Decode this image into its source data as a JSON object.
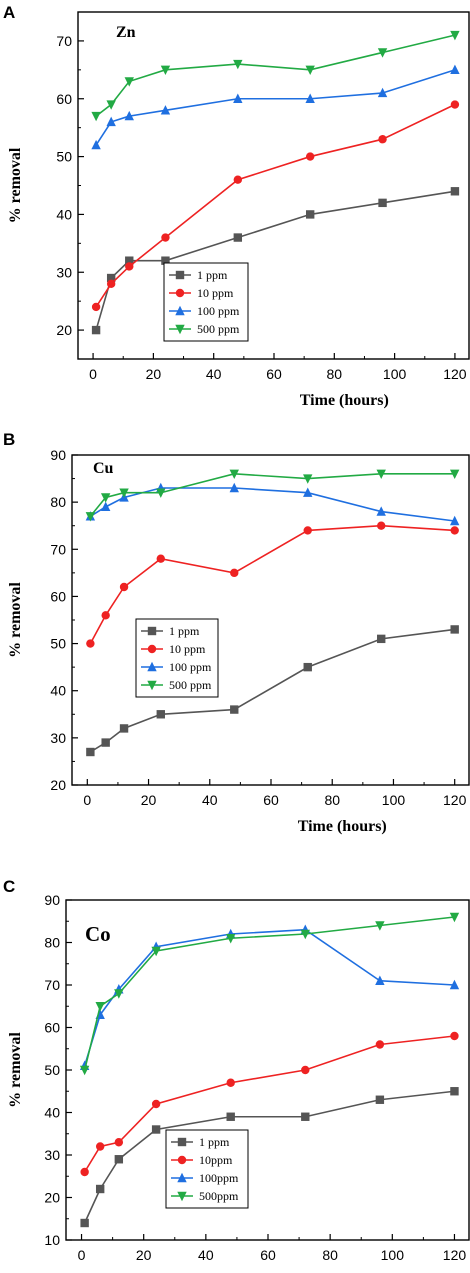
{
  "chart_data": [
    {
      "type": "line",
      "panel_label": "A",
      "title": "Zn",
      "xlabel": "Time (hours)",
      "ylabel": "% removal",
      "xlim": [
        -5,
        125
      ],
      "ylim": [
        15,
        75
      ],
      "xticks": [
        0,
        20,
        40,
        60,
        80,
        100,
        120
      ],
      "yticks": [
        20,
        30,
        40,
        50,
        60,
        70
      ],
      "legend_position": "lower-center",
      "x": [
        1,
        6,
        12,
        24,
        48,
        72,
        96,
        120
      ],
      "series": [
        {
          "name": "1 ppm",
          "color": "#555555",
          "marker": "square",
          "values": [
            20,
            29,
            32,
            32,
            36,
            40,
            42,
            44
          ]
        },
        {
          "name": "10 ppm",
          "color": "#ee2222",
          "marker": "circle",
          "values": [
            24,
            28,
            31,
            36,
            46,
            50,
            53,
            59
          ]
        },
        {
          "name": "100 ppm",
          "color": "#1f6fe0",
          "marker": "triangle-up",
          "values": [
            52,
            56,
            57,
            58,
            60,
            60,
            61,
            65
          ]
        },
        {
          "name": "500 ppm",
          "color": "#22aa44",
          "marker": "triangle-down",
          "values": [
            57,
            59,
            63,
            65,
            66,
            65,
            68,
            71
          ]
        }
      ]
    },
    {
      "type": "line",
      "panel_label": "B",
      "title": "Cu",
      "xlabel": "Time (hours)",
      "ylabel": "% removal",
      "xlim": [
        -5,
        125
      ],
      "ylim": [
        20,
        90
      ],
      "xticks": [
        0,
        20,
        40,
        60,
        80,
        100,
        120
      ],
      "yticks": [
        20,
        30,
        40,
        50,
        60,
        70,
        80,
        90
      ],
      "legend_position": "lower-left",
      "x": [
        1,
        6,
        12,
        24,
        48,
        72,
        96,
        120
      ],
      "series": [
        {
          "name": "1 ppm",
          "color": "#555555",
          "marker": "square",
          "values": [
            27,
            29,
            32,
            35,
            36,
            45,
            51,
            53
          ]
        },
        {
          "name": "10 ppm",
          "color": "#ee2222",
          "marker": "circle",
          "values": [
            50,
            56,
            62,
            68,
            65,
            74,
            75,
            74
          ]
        },
        {
          "name": "100 ppm",
          "color": "#1f6fe0",
          "marker": "triangle-up",
          "values": [
            77,
            79,
            81,
            83,
            83,
            82,
            78,
            76
          ]
        },
        {
          "name": "500 ppm",
          "color": "#22aa44",
          "marker": "triangle-down",
          "values": [
            77,
            81,
            82,
            82,
            86,
            85,
            86,
            86
          ]
        }
      ]
    },
    {
      "type": "line",
      "panel_label": "C",
      "title": "Co",
      "xlabel": "Time (hours)",
      "ylabel": "% removal",
      "xlim": [
        -5,
        125
      ],
      "ylim": [
        10,
        90
      ],
      "xticks": [
        0,
        20,
        40,
        60,
        80,
        100,
        120
      ],
      "yticks": [
        10,
        20,
        30,
        40,
        50,
        60,
        70,
        80,
        90
      ],
      "legend_position": "lower-center",
      "x": [
        1,
        6,
        12,
        24,
        48,
        72,
        96,
        120
      ],
      "series": [
        {
          "name": "1 ppm",
          "color": "#555555",
          "marker": "square",
          "values": [
            14,
            22,
            29,
            36,
            39,
            39,
            43,
            45
          ]
        },
        {
          "name": "10ppm",
          "color": "#ee2222",
          "marker": "circle",
          "values": [
            26,
            32,
            33,
            42,
            47,
            50,
            56,
            58
          ]
        },
        {
          "name": "100ppm",
          "color": "#1f6fe0",
          "marker": "triangle-up",
          "values": [
            51,
            63,
            69,
            79,
            82,
            83,
            71,
            70
          ]
        },
        {
          "name": "500ppm",
          "color": "#22aa44",
          "marker": "triangle-down",
          "values": [
            50,
            65,
            68,
            78,
            81,
            82,
            84,
            86
          ]
        }
      ]
    }
  ]
}
